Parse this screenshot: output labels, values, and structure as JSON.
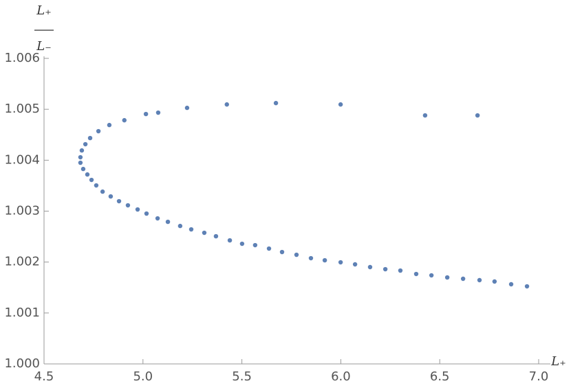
{
  "chart_data": {
    "type": "scatter",
    "x_label": "L₊",
    "y_label_numerator": "L₊",
    "y_label_denominator": "L₋",
    "color": "#5e81b5",
    "xlim": [
      4.5,
      7.0
    ],
    "ylim": [
      1.0,
      1.006
    ],
    "xticks": [
      4.5,
      {
        "value": 5,
        "label": "5.0"
      },
      5.5,
      {
        "value": 6,
        "label": "6.0"
      },
      6.5,
      {
        "value": 7,
        "label": "7.0"
      }
    ],
    "yticks": [
      {
        "value": 1,
        "label": "1.000"
      },
      {
        "value": 1.001,
        "label": "1.001"
      },
      {
        "value": 1.002,
        "label": "1.002"
      },
      {
        "value": 1.003,
        "label": "1.003"
      },
      {
        "value": 1.004,
        "label": "1.004"
      },
      {
        "value": 1.005,
        "label": "1.005"
      },
      {
        "value": 1.006,
        "label": "1.006"
      }
    ],
    "x": [
      4.691,
      4.709,
      4.733,
      4.775,
      4.83,
      4.906,
      5.015,
      5.077,
      5.223,
      5.424,
      5.672,
      5.999,
      6.426,
      6.691,
      4.684,
      4.684,
      4.698,
      4.719,
      4.74,
      4.764,
      4.796,
      4.837,
      4.879,
      4.924,
      4.973,
      5.018,
      5.074,
      5.126,
      5.188,
      5.244,
      5.31,
      5.369,
      5.439,
      5.501,
      5.567,
      5.637,
      5.703,
      5.776,
      5.849,
      5.919,
      5.999,
      6.072,
      6.148,
      6.225,
      6.301,
      6.381,
      6.458,
      6.538,
      6.618,
      6.701,
      6.777,
      6.861,
      6.941
    ],
    "y": [
      1.004192,
      1.004314,
      1.004435,
      1.00457,
      1.004691,
      1.004785,
      1.004907,
      1.004934,
      1.005028,
      1.005095,
      1.005122,
      1.005095,
      1.00488,
      1.00488,
      1.004058,
      1.00395,
      1.003828,
      1.00372,
      1.003613,
      1.003505,
      1.003383,
      1.003289,
      1.003195,
      1.003114,
      1.003033,
      1.002952,
      1.002858,
      1.00279,
      1.002709,
      1.002642,
      1.002575,
      1.002507,
      1.002426,
      1.002359,
      1.002332,
      1.002265,
      1.002197,
      1.002143,
      1.002076,
      1.002035,
      1.001995,
      1.001955,
      1.001901,
      1.00186,
      1.001833,
      1.001766,
      1.001739,
      1.001698,
      1.001672,
      1.001645,
      1.001618,
      1.001564,
      1.001523
    ]
  }
}
